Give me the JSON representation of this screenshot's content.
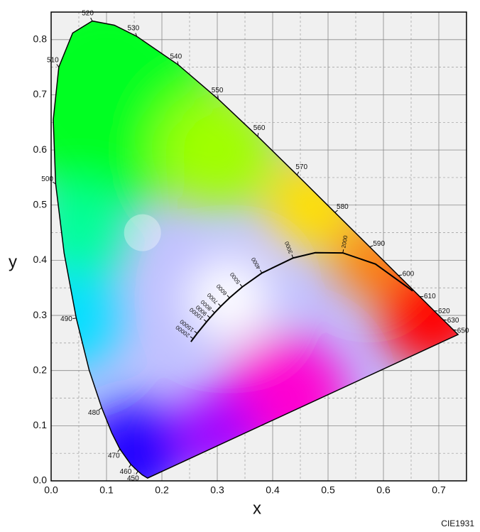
{
  "chart_data": {
    "type": "chromaticity",
    "x_label": "x",
    "y_label": "y",
    "caption": "CIE1931",
    "xlim": [
      0,
      0.75
    ],
    "ylim": [
      0,
      0.85
    ],
    "xticks": [
      {
        "value": 0,
        "label": "0.0"
      },
      0.1,
      0.2,
      0.3,
      0.4,
      0.5,
      0.6,
      0.7
    ],
    "yticks": [
      {
        "value": 0,
        "label": "0.0"
      },
      0.1,
      0.2,
      0.3,
      0.4,
      0.5,
      0.6,
      0.7,
      0.8
    ],
    "xminor": [
      0.05,
      0.15,
      0.25,
      0.35,
      0.45,
      0.55,
      0.65,
      0.75
    ],
    "yminor": [
      0.05,
      0.15,
      0.25,
      0.35,
      0.45,
      0.55,
      0.65,
      0.75,
      0.85
    ],
    "grid": true,
    "spectral_locus": {
      "wavelengths": [
        null,
        null,
        450,
        460,
        470,
        null,
        480,
        null,
        490,
        null,
        500,
        null,
        510,
        null,
        520,
        null,
        530,
        540,
        550,
        560,
        570,
        580,
        590,
        600,
        610,
        620,
        630,
        650,
        null
      ],
      "x": [
        0.1741,
        0.1644,
        0.1566,
        0.144,
        0.1241,
        0.1096,
        0.0913,
        0.0687,
        0.0454,
        0.0235,
        0.0082,
        0.0039,
        0.0139,
        0.0389,
        0.0743,
        0.1142,
        0.1547,
        0.2296,
        0.3016,
        0.3731,
        0.4441,
        0.5125,
        0.5752,
        0.627,
        0.6658,
        0.6915,
        0.7079,
        0.726,
        0.7347
      ],
      "y": [
        0.005,
        0.0109,
        0.0177,
        0.0297,
        0.0578,
        0.0868,
        0.1327,
        0.2007,
        0.295,
        0.4127,
        0.5384,
        0.6548,
        0.7502,
        0.812,
        0.8338,
        0.8262,
        0.8059,
        0.7543,
        0.6923,
        0.6245,
        0.5547,
        0.4866,
        0.4242,
        0.3725,
        0.334,
        0.3083,
        0.292,
        0.274,
        0.2653
      ]
    },
    "planckian_locus": {
      "temperatures": [
        null,
        null,
        2000,
        null,
        3000,
        4000,
        5000,
        6000,
        7000,
        8000,
        9000,
        10000,
        15000,
        20000,
        null
      ],
      "x": [
        0.6528,
        0.5857,
        0.5267,
        0.477,
        0.4369,
        0.3805,
        0.3451,
        0.3221,
        0.3064,
        0.2952,
        0.2869,
        0.2807,
        0.2637,
        0.2565,
        0.2524
      ],
      "y": [
        0.3444,
        0.3931,
        0.4133,
        0.4137,
        0.4041,
        0.3768,
        0.3516,
        0.3318,
        0.3166,
        0.3048,
        0.2956,
        0.2884,
        0.2674,
        0.2577,
        0.2522
      ]
    },
    "highlight": {
      "x": 0.165,
      "y": 0.45
    }
  }
}
